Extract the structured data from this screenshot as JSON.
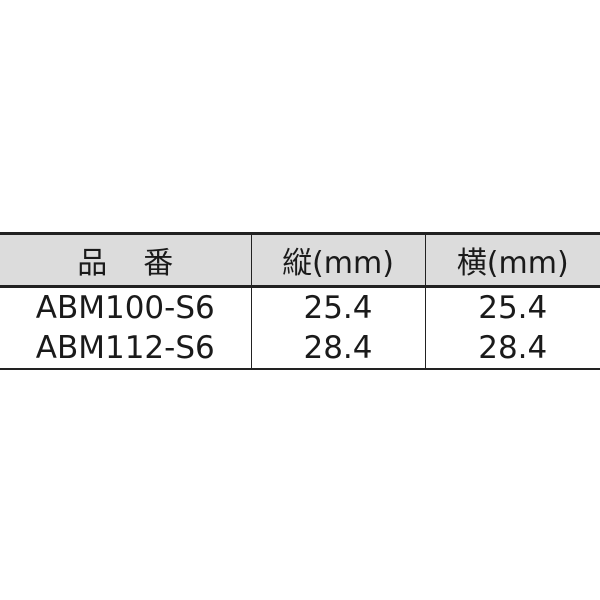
{
  "table": {
    "headers": [
      "品番",
      "縦(mm)",
      "横(mm)"
    ],
    "rows": [
      [
        "ABM100-S6",
        "25.4",
        "25.4"
      ],
      [
        "ABM112-S6",
        "28.4",
        "28.4"
      ]
    ]
  }
}
